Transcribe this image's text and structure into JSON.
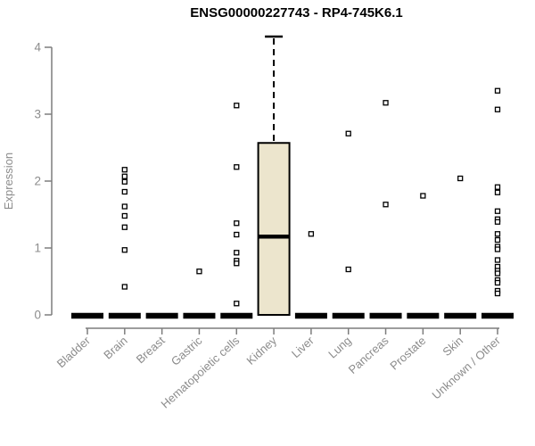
{
  "chart_data": {
    "type": "boxplot",
    "title": "ENSG00000227743 - RP4-745K6.1",
    "ylabel": "Expression",
    "xlabel": "",
    "ylim": [
      0,
      4
    ],
    "yticks": [
      "0",
      "1",
      "2",
      "3",
      "4"
    ],
    "grid": false,
    "legend": "none",
    "categories": [
      "Bladder",
      "Brain",
      "Breast",
      "Gastric",
      "Hematopoietic cells",
      "Kidney",
      "Liver",
      "Lung",
      "Pancreas",
      "Prostate",
      "Skin",
      "Unknown / Other"
    ],
    "boxes": [
      {
        "category": "Bladder",
        "q1": 0,
        "median": 0,
        "q3": 0,
        "whisker_low": 0,
        "whisker_high": 0,
        "outliers": []
      },
      {
        "category": "Brain",
        "q1": 0,
        "median": 0,
        "q3": 0,
        "whisker_low": 0,
        "whisker_high": 0,
        "outliers": [
          2.17,
          2.07,
          1.99,
          1.84,
          1.62,
          1.48,
          1.31,
          0.97,
          0.42
        ]
      },
      {
        "category": "Breast",
        "q1": 0,
        "median": 0,
        "q3": 0,
        "whisker_low": 0,
        "whisker_high": 0,
        "outliers": []
      },
      {
        "category": "Gastric",
        "q1": 0,
        "median": 0,
        "q3": 0,
        "whisker_low": 0,
        "whisker_high": 0,
        "outliers": [
          0.65
        ]
      },
      {
        "category": "Hematopoietic cells",
        "q1": 0,
        "median": 0,
        "q3": 0,
        "whisker_low": 0,
        "whisker_high": 0,
        "outliers": [
          3.13,
          2.21,
          1.37,
          1.2,
          0.93,
          0.81,
          0.77,
          0.17
        ]
      },
      {
        "category": "Kidney",
        "q1": 0,
        "median": 1.17,
        "q3": 2.57,
        "whisker_low": 0,
        "whisker_high": 4.16,
        "outliers": []
      },
      {
        "category": "Liver",
        "q1": 0,
        "median": 0,
        "q3": 0,
        "whisker_low": 0,
        "whisker_high": 0,
        "outliers": [
          1.21
        ]
      },
      {
        "category": "Lung",
        "q1": 0,
        "median": 0,
        "q3": 0,
        "whisker_low": 0,
        "whisker_high": 0,
        "outliers": [
          2.71,
          0.68
        ]
      },
      {
        "category": "Pancreas",
        "q1": 0,
        "median": 0,
        "q3": 0,
        "whisker_low": 0,
        "whisker_high": 0,
        "outliers": [
          3.17,
          1.65
        ]
      },
      {
        "category": "Prostate",
        "q1": 0,
        "median": 0,
        "q3": 0,
        "whisker_low": 0,
        "whisker_high": 0,
        "outliers": [
          1.78
        ]
      },
      {
        "category": "Skin",
        "q1": 0,
        "median": 0,
        "q3": 0,
        "whisker_low": 0,
        "whisker_high": 0,
        "outliers": [
          2.04
        ]
      },
      {
        "category": "Unknown / Other",
        "q1": 0,
        "median": 0,
        "q3": 0,
        "whisker_low": 0,
        "whisker_high": 0,
        "outliers": [
          3.35,
          3.07,
          1.91,
          1.83,
          1.55,
          1.43,
          1.39,
          1.21,
          1.12,
          1.02,
          0.98,
          0.82,
          0.72,
          0.66,
          0.62,
          0.52,
          0.48,
          0.36,
          0.32
        ]
      }
    ],
    "colors": {
      "background": "#ffffff",
      "box_fill": "#ece5cd",
      "box_stroke": "#000000",
      "axis_line": "#7d7d7d",
      "axis_text": "#8c8c8c",
      "title_color": "#000000",
      "outlier_fill": "#ffffff"
    }
  }
}
